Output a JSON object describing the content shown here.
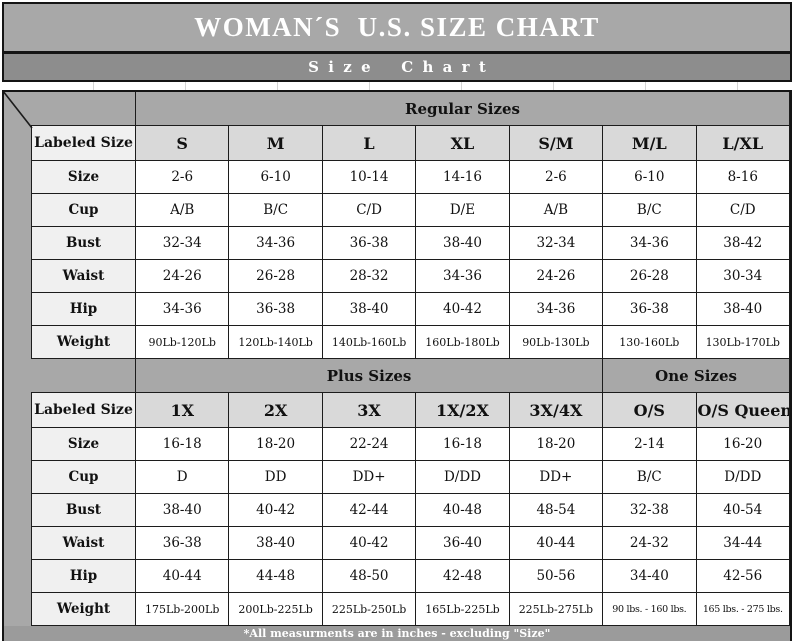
{
  "title": "WOMAN´S  U.S. SIZE CHART",
  "subtitle": "Size Chart",
  "footer_note": "*All measurments are in inches - excluding \"Size\"",
  "colors": {
    "banner_gray": "#a8a8a8",
    "subtitle_gray": "#8d8d8d",
    "column_header_gray": "#d9d9d9",
    "row_label_gray": "#f0f0f0",
    "footer_gray": "#9b9b9b",
    "border_black": "#141414",
    "text_white": "#ffffff",
    "text_black": "#111111"
  },
  "table": {
    "sections": [
      {
        "section_headers": [
          {
            "label": "Regular Sizes",
            "span": 7
          }
        ],
        "labeled_size_row": {
          "label": "Labeled Size",
          "values": [
            "S",
            "M",
            "L",
            "XL",
            "S/M",
            "M/L",
            "L/XL"
          ]
        },
        "rows": [
          {
            "label": "Size",
            "values": [
              "2-6",
              "6-10",
              "10-14",
              "14-16",
              "2-6",
              "6-10",
              "8-16"
            ]
          },
          {
            "label": "Cup",
            "values": [
              "A/B",
              "B/C",
              "C/D",
              "D/E",
              "A/B",
              "B/C",
              "C/D"
            ]
          },
          {
            "label": "Bust",
            "values": [
              "32-34",
              "34-36",
              "36-38",
              "38-40",
              "32-34",
              "34-36",
              "38-42"
            ]
          },
          {
            "label": "Waist",
            "values": [
              "24-26",
              "26-28",
              "28-32",
              "34-36",
              "24-26",
              "26-28",
              "30-34"
            ]
          },
          {
            "label": "Hip",
            "values": [
              "34-36",
              "36-38",
              "38-40",
              "40-42",
              "34-36",
              "36-38",
              "38-40"
            ]
          },
          {
            "label": "Weight",
            "small": true,
            "values": [
              "90Lb-120Lb",
              "120Lb-140Lb",
              "140Lb-160Lb",
              "160Lb-180Lb",
              "90Lb-130Lb",
              "130-160Lb",
              "130Lb-170Lb"
            ]
          }
        ]
      },
      {
        "section_headers": [
          {
            "label": "Plus Sizes",
            "span": 5
          },
          {
            "label": "One Sizes",
            "span": 2
          }
        ],
        "labeled_size_row": {
          "label": "Labeled Size",
          "values": [
            "1X",
            "2X",
            "3X",
            "1X/2X",
            "3X/4X",
            "O/S",
            "O/S Queen"
          ]
        },
        "rows": [
          {
            "label": "Size",
            "values": [
              "16-18",
              "18-20",
              "22-24",
              "16-18",
              "18-20",
              "2-14",
              "16-20"
            ]
          },
          {
            "label": "Cup",
            "values": [
              "D",
              "DD",
              "DD+",
              "D/DD",
              "DD+",
              "B/C",
              "D/DD"
            ]
          },
          {
            "label": "Bust",
            "values": [
              "38-40",
              "40-42",
              "42-44",
              "40-48",
              "48-54",
              "32-38",
              "40-54"
            ]
          },
          {
            "label": "Waist",
            "values": [
              "36-38",
              "38-40",
              "40-42",
              "36-40",
              "40-44",
              "24-32",
              "34-44"
            ]
          },
          {
            "label": "Hip",
            "values": [
              "40-44",
              "44-48",
              "48-50",
              "42-48",
              "50-56",
              "34-40",
              "42-56"
            ]
          },
          {
            "label": "Weight",
            "small": true,
            "values": [
              "175Lb-200Lb",
              "200Lb-225Lb",
              "225Lb-250Lb",
              "165Lb-225Lb",
              "225Lb-275Lb",
              "90 lbs. - 160 lbs.",
              "165 lbs. - 275 lbs."
            ]
          }
        ]
      }
    ]
  }
}
